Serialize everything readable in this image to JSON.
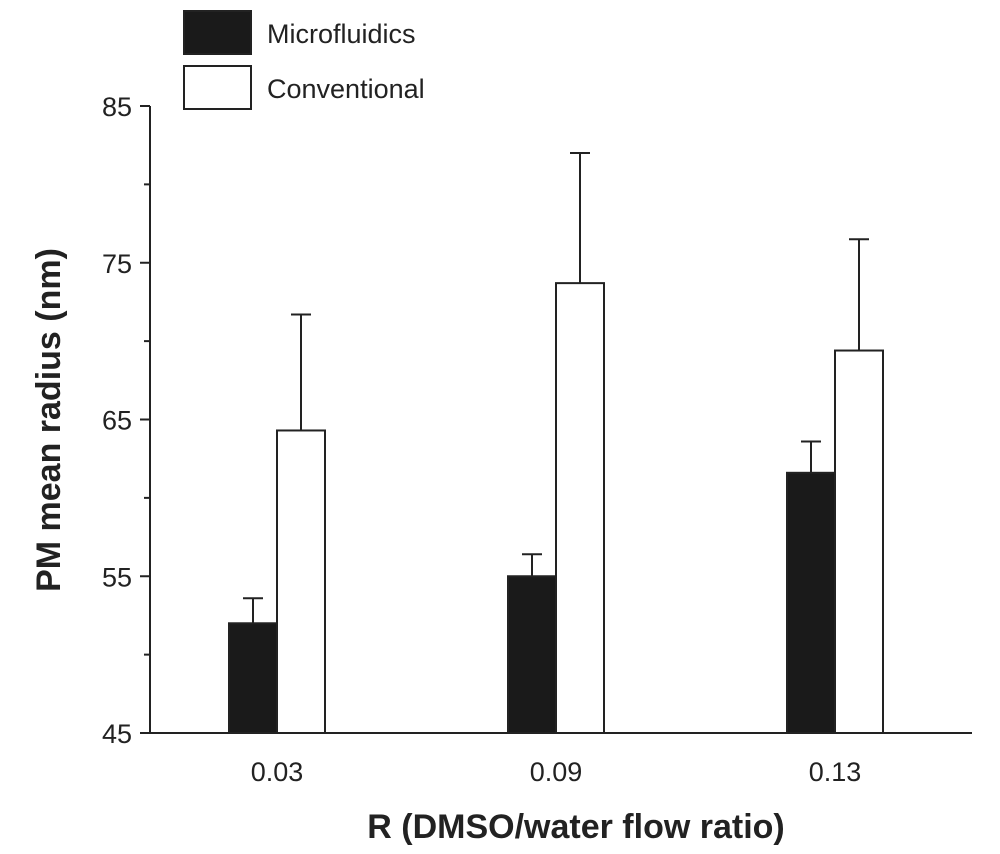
{
  "chart_data": {
    "type": "bar",
    "title": "",
    "xlabel": "R (DMSO/water flow ratio)",
    "ylabel": "PM mean radius (nm)",
    "categories": [
      "0.03",
      "0.09",
      "0.13"
    ],
    "ylim": [
      45,
      85
    ],
    "yticks": [
      45,
      55,
      65,
      75,
      85
    ],
    "grid": false,
    "legend_position": "top-left",
    "series": [
      {
        "name": "Microfluidics",
        "color": "#1a1a1a",
        "values": [
          52.0,
          55.0,
          61.6
        ],
        "errors": [
          1.6,
          1.4,
          2.0
        ]
      },
      {
        "name": "Conventional",
        "color": "#ffffff",
        "values": [
          64.3,
          73.7,
          69.4
        ],
        "errors": [
          7.4,
          8.3,
          7.1
        ]
      }
    ]
  }
}
